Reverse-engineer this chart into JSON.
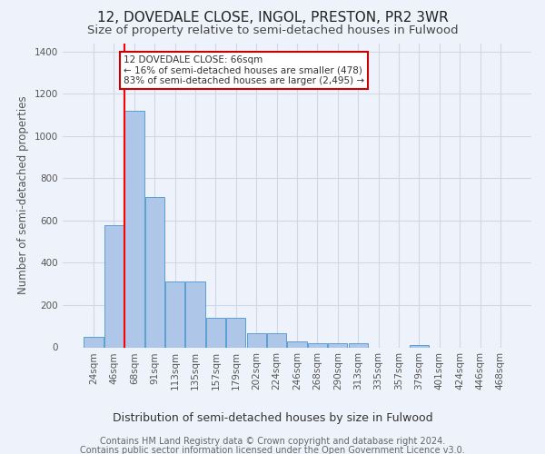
{
  "title": "12, DOVEDALE CLOSE, INGOL, PRESTON, PR2 3WR",
  "subtitle": "Size of property relative to semi-detached houses in Fulwood",
  "xlabel_bottom": "Distribution of semi-detached houses by size in Fulwood",
  "ylabel": "Number of semi-detached properties",
  "footnote1": "Contains HM Land Registry data © Crown copyright and database right 2024.",
  "footnote2": "Contains public sector information licensed under the Open Government Licence v3.0.",
  "x_labels": [
    "24sqm",
    "46sqm",
    "68sqm",
    "91sqm",
    "113sqm",
    "135sqm",
    "157sqm",
    "179sqm",
    "202sqm",
    "224sqm",
    "246sqm",
    "268sqm",
    "290sqm",
    "313sqm",
    "335sqm",
    "357sqm",
    "379sqm",
    "401sqm",
    "424sqm",
    "446sqm",
    "468sqm"
  ],
  "bar_heights": [
    50,
    580,
    1120,
    710,
    310,
    310,
    140,
    140,
    65,
    65,
    30,
    20,
    20,
    20,
    0,
    0,
    10,
    0,
    0,
    0,
    0
  ],
  "bar_color": "#aec6e8",
  "bar_edge_color": "#5a9fd4",
  "grid_color": "#d0d8e8",
  "bg_color": "#eef2fa",
  "red_line_index": 2,
  "annotation_line1": "12 DOVEDALE CLOSE: 66sqm",
  "annotation_line2": "← 16% of semi-detached houses are smaller (478)",
  "annotation_line3": "83% of semi-detached houses are larger (2,495) →",
  "annotation_box_color": "#ffffff",
  "annotation_border_color": "#cc0000",
  "ylim": [
    0,
    1440
  ],
  "title_fontsize": 11,
  "subtitle_fontsize": 9.5,
  "tick_fontsize": 7.5,
  "ylabel_fontsize": 8.5,
  "xlabel_bottom_fontsize": 9,
  "footnote_fontsize": 7
}
